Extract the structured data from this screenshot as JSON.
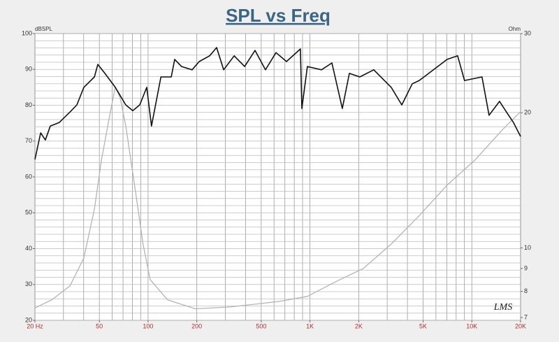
{
  "chart_data": {
    "type": "line",
    "title": "SPL vs Freq",
    "y_label": "dBSPL",
    "y2_label": "Ohm",
    "logo": "LMS",
    "x_log": true,
    "y2_log": true,
    "xlim": [
      20,
      20000
    ],
    "ylim": [
      20,
      100
    ],
    "y2lim": [
      6.9,
      30
    ],
    "xticks": [
      {
        "value": 20,
        "label": "20 Hz"
      },
      50,
      100,
      200,
      500,
      {
        "value": 1000,
        "label": "1K"
      },
      {
        "value": 2000,
        "label": "2K"
      },
      {
        "value": 5000,
        "label": "5K"
      },
      {
        "value": 10000,
        "label": "10K"
      },
      {
        "value": 20000,
        "label": "20K"
      }
    ],
    "yticks": [
      20,
      30,
      40,
      50,
      60,
      70,
      80,
      90,
      100
    ],
    "y2ticks": [
      7,
      8,
      9,
      10,
      20,
      30
    ],
    "xgrid": [
      20,
      30,
      40,
      50,
      60,
      70,
      80,
      90,
      100,
      200,
      300,
      400,
      500,
      600,
      700,
      800,
      900,
      1000,
      2000,
      3000,
      4000,
      5000,
      6000,
      7000,
      8000,
      9000,
      10000,
      20000
    ],
    "ygrid": [
      20,
      22,
      24,
      26,
      28,
      30,
      32,
      34,
      36,
      38,
      40,
      42,
      44,
      46,
      48,
      50,
      52,
      54,
      56,
      58,
      60,
      62,
      64,
      66,
      68,
      70,
      72,
      74,
      76,
      78,
      80,
      82,
      84,
      86,
      88,
      90,
      92,
      94,
      96,
      98,
      100
    ],
    "series": [
      {
        "color": "#111111",
        "x": [
          20,
          21.7,
          23.2,
          24.9,
          28.3,
          32.9,
          36.3,
          40.1,
          46.6,
          48.9,
          54.1,
          62.7,
          72.8,
          80.4,
          88.8,
          98.1,
          105,
          120,
          139,
          146,
          161,
          187,
          207,
          240,
          265,
          293,
          340,
          395,
          458,
          531,
          617,
          716,
          873,
          891,
          964,
          1178,
          1366,
          1585,
          1751,
          2032,
          2479,
          3178,
          3690,
          4286,
          4733,
          7035,
          8166,
          9016,
          11560,
          12770,
          14830,
          16370,
          18080,
          20000
        ],
        "values": [
          64.9,
          72.3,
          70.3,
          74.2,
          75.2,
          78.1,
          80.1,
          85.0,
          87.9,
          91.4,
          88.9,
          85.0,
          80.1,
          78.5,
          80.1,
          85.0,
          74.2,
          87.9,
          87.9,
          92.8,
          90.8,
          89.9,
          92.2,
          93.8,
          96.1,
          89.9,
          93.8,
          90.8,
          95.3,
          89.9,
          94.7,
          92.2,
          95.7,
          79.1,
          90.8,
          89.9,
          91.8,
          79.1,
          88.9,
          87.9,
          89.9,
          85.0,
          80.1,
          86.0,
          86.9,
          92.8,
          93.8,
          86.9,
          87.9,
          77.2,
          81.1,
          78.1,
          75.2,
          71.3
        ]
      },
      {
        "color": "#b4b4b4",
        "axis": "y2",
        "x": [
          20,
          25.5,
          32.9,
          40.1,
          46.6,
          51.5,
          58.5,
          62.7,
          67.2,
          72.8,
          84.3,
          93.1,
          103,
          132,
          196,
          322,
          645,
          964,
          1434,
          2134,
          3178,
          4733,
          7035,
          10480,
          15600,
          20000
        ],
        "values": [
          7.35,
          7.67,
          8.23,
          9.5,
          12.2,
          15.7,
          20.1,
          22.8,
          21.6,
          18.7,
          13.1,
          10.2,
          8.5,
          7.66,
          7.32,
          7.39,
          7.6,
          7.8,
          8.4,
          9.0,
          10.2,
          11.8,
          13.8,
          15.7,
          18.4,
          20.1
        ]
      }
    ]
  }
}
